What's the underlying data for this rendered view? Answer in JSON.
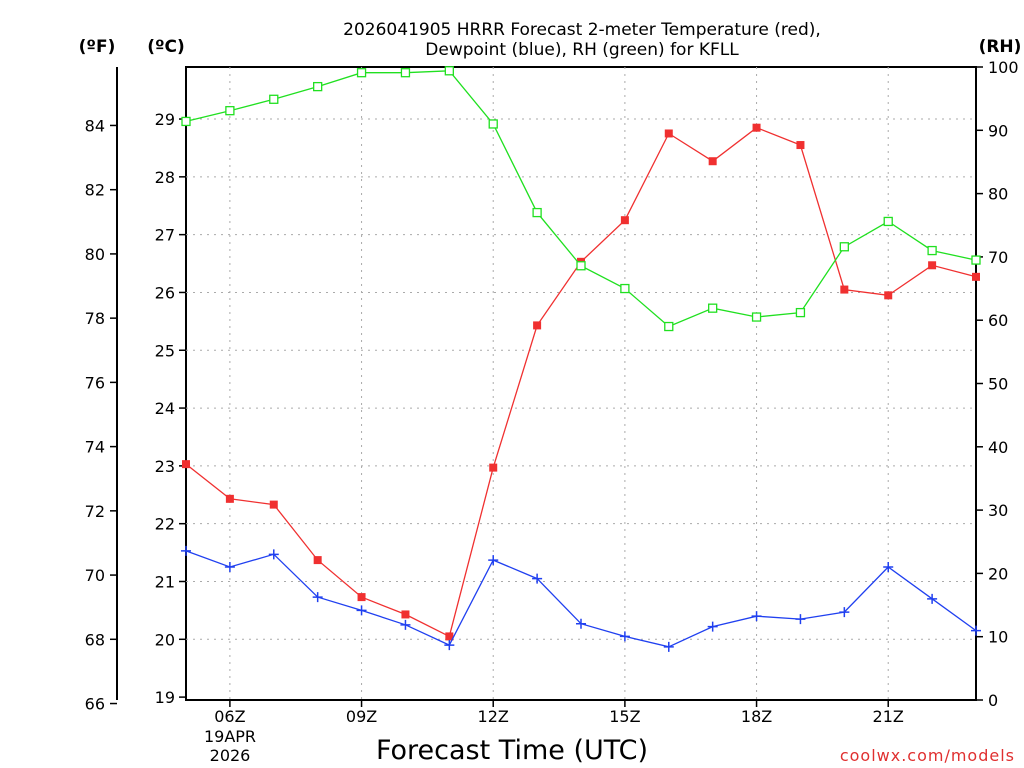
{
  "title_line1": "2026041905 HRRR Forecast 2-meter Temperature (red),",
  "title_line2": "Dewpoint (blue), RH (green) for KFLL",
  "unit_f": "(ºF)",
  "unit_c": "(ºC)",
  "unit_rh": "(RH)",
  "xlabel": "Forecast Time (UTC)",
  "credit": "coolwx.com/models",
  "date_line1": "19APR",
  "date_line2": "2026",
  "colors": {
    "temperature": "#f03030",
    "dewpoint": "#2040f0",
    "rh": "#20e020",
    "grid": "#aaaaaa"
  },
  "chart_data": {
    "type": "line",
    "x": [
      5,
      6,
      7,
      8,
      9,
      10,
      11,
      12,
      13,
      14,
      15,
      16,
      17,
      18,
      19,
      20,
      21,
      22,
      23
    ],
    "xlim": [
      5,
      23
    ],
    "x_ticks": [
      6,
      9,
      12,
      15,
      18,
      21
    ],
    "x_tick_labels": [
      "06Z",
      "09Z",
      "12Z",
      "15Z",
      "18Z",
      "21Z"
    ],
    "celsius_ticks": [
      19,
      20,
      21,
      22,
      23,
      24,
      25,
      26,
      27,
      28,
      29
    ],
    "fahrenheit_ticks": [
      66,
      68,
      70,
      72,
      74,
      76,
      78,
      80,
      82,
      84
    ],
    "rh_ticks": [
      0,
      10,
      20,
      30,
      40,
      50,
      60,
      70,
      80,
      90,
      100
    ],
    "ylim_celsius": [
      18.95,
      29.9
    ],
    "ylim_rh": [
      0,
      100
    ],
    "series": [
      {
        "name": "Temperature",
        "unit": "°C",
        "axis": "celsius",
        "marker": "filled-square",
        "values": [
          23.03,
          22.43,
          22.33,
          21.37,
          20.73,
          20.43,
          20.05,
          22.97,
          25.43,
          26.53,
          27.25,
          28.75,
          28.27,
          28.85,
          28.55,
          26.05,
          25.95,
          26.47,
          26.27
        ]
      },
      {
        "name": "Dewpoint",
        "unit": "°C",
        "axis": "celsius",
        "marker": "plus",
        "values": [
          21.53,
          21.25,
          21.47,
          20.73,
          20.5,
          20.25,
          19.9,
          21.37,
          21.05,
          20.27,
          20.05,
          19.87,
          20.22,
          20.4,
          20.35,
          20.47,
          21.25,
          20.7,
          20.15
        ]
      },
      {
        "name": "RH",
        "unit": "%",
        "axis": "rh",
        "marker": "open-square",
        "values": [
          91.4,
          93.1,
          94.9,
          96.9,
          99.1,
          99.1,
          99.4,
          91.0,
          77.0,
          68.6,
          65.0,
          59.0,
          61.9,
          60.5,
          61.2,
          71.6,
          75.6,
          71.0,
          69.5
        ]
      }
    ]
  }
}
